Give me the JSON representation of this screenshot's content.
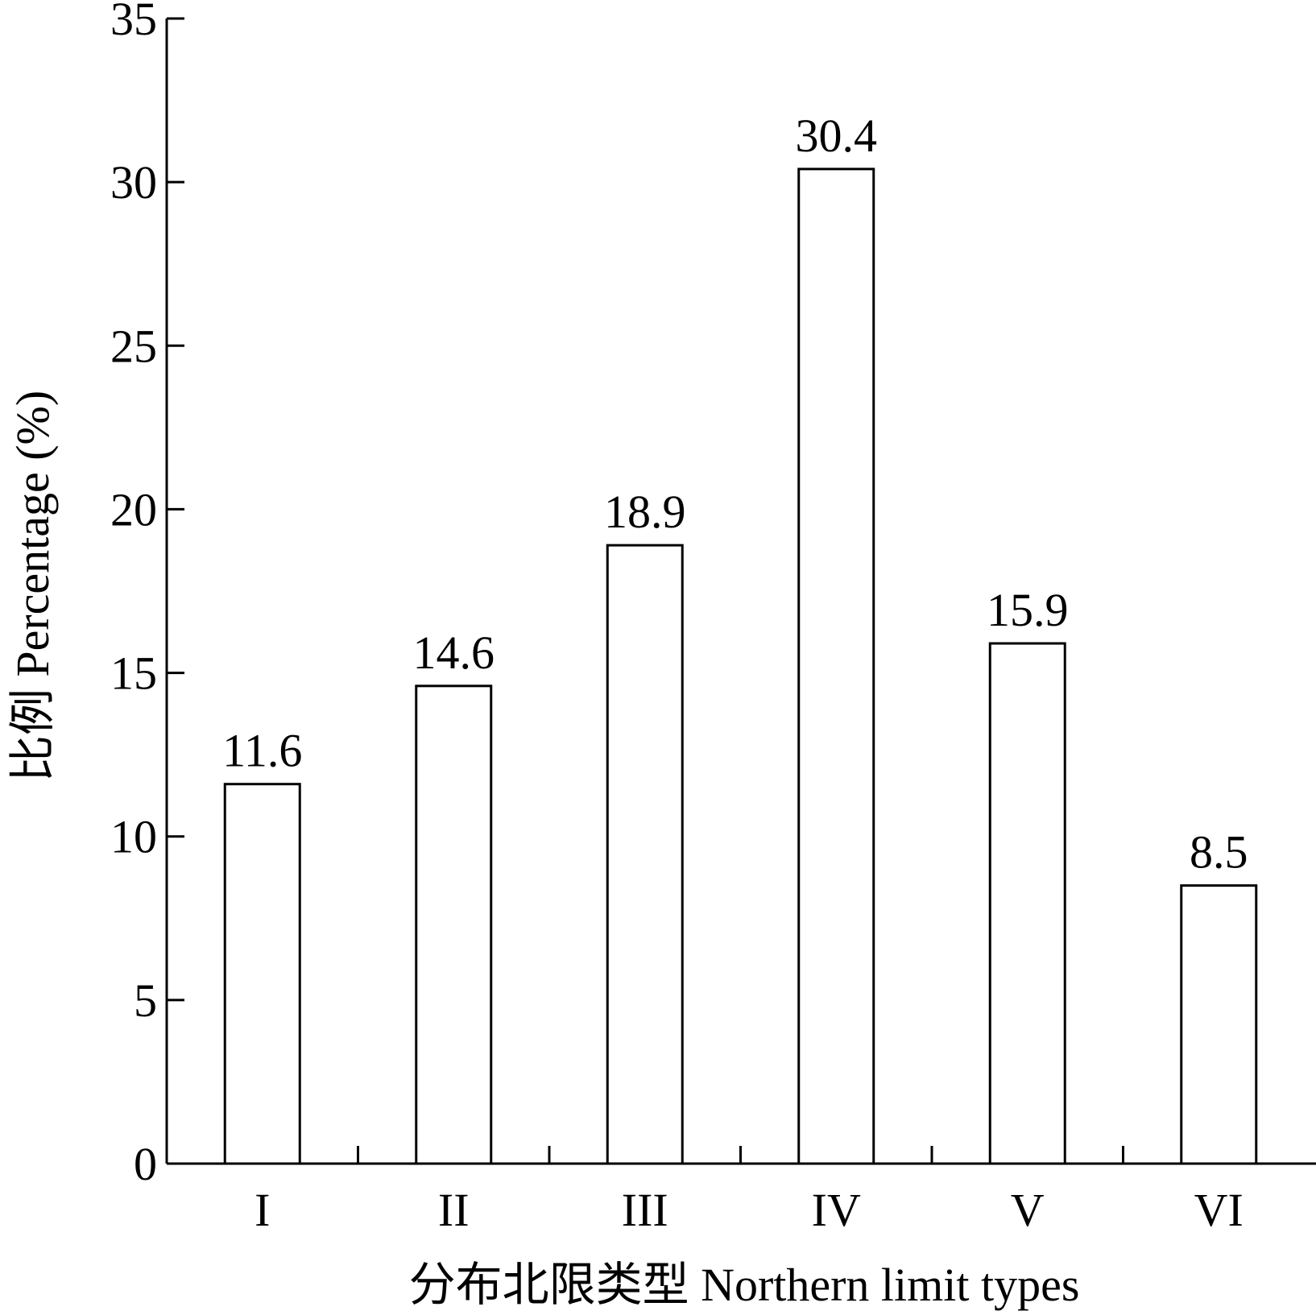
{
  "chart_data": {
    "type": "bar",
    "categories": [
      "I",
      "II",
      "III",
      "IV",
      "V",
      "VI"
    ],
    "values": [
      11.6,
      14.6,
      18.9,
      30.4,
      15.9,
      8.5
    ],
    "value_labels": [
      "11.6",
      "14.6",
      "18.9",
      "30.4",
      "15.9",
      "8.5"
    ],
    "xlabel": "分布北限类型  Northern limit types",
    "ylabel": "比例 Percentage (%)",
    "ylim": [
      0,
      35
    ],
    "yticks": [
      0,
      5,
      10,
      15,
      20,
      25,
      30,
      35
    ],
    "ytick_labels": [
      "0",
      "5",
      "10",
      "15",
      "20",
      "25",
      "30",
      "35"
    ],
    "grid": false,
    "bar_fill": "#ffffff",
    "bar_stroke": "#000000"
  }
}
